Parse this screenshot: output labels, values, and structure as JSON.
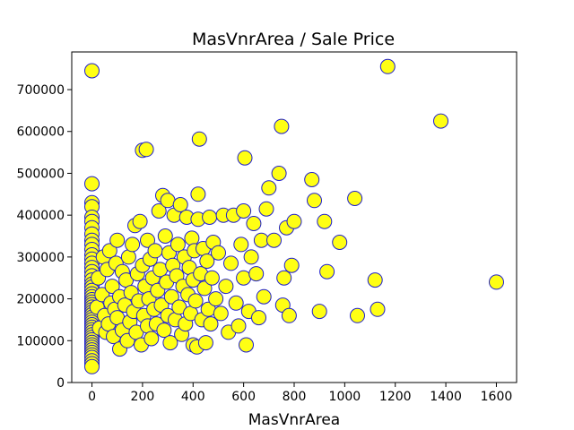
{
  "chart_data": {
    "type": "scatter",
    "title": "MasVnrArea / Sale Price",
    "xlabel": "MasVnrArea",
    "ylabel": "",
    "xlim": [
      -80,
      1680
    ],
    "ylim": [
      0,
      790000
    ],
    "x_ticks": [
      0,
      200,
      400,
      600,
      800,
      1000,
      1200,
      1400,
      1600
    ],
    "y_ticks": [
      0,
      100000,
      200000,
      300000,
      400000,
      500000,
      600000,
      700000
    ],
    "grid": false,
    "marker": {
      "face_color": "#ffff14",
      "edge_color": "#1f1fcc"
    },
    "points": [
      [
        0,
        745000
      ],
      [
        0,
        475000
      ],
      [
        0,
        430000
      ],
      [
        0,
        420000
      ],
      [
        0,
        395000
      ],
      [
        0,
        385000
      ],
      [
        0,
        370000
      ],
      [
        0,
        355000
      ],
      [
        0,
        340000
      ],
      [
        0,
        330000
      ],
      [
        0,
        318000
      ],
      [
        0,
        305000
      ],
      [
        0,
        295000
      ],
      [
        0,
        285000
      ],
      [
        0,
        275000
      ],
      [
        0,
        265000
      ],
      [
        0,
        255000
      ],
      [
        0,
        245000
      ],
      [
        0,
        235000
      ],
      [
        0,
        228000
      ],
      [
        0,
        220000
      ],
      [
        0,
        212000
      ],
      [
        0,
        205000
      ],
      [
        0,
        198000
      ],
      [
        0,
        192000
      ],
      [
        0,
        186000
      ],
      [
        0,
        180000
      ],
      [
        0,
        174000
      ],
      [
        0,
        168000
      ],
      [
        0,
        162000
      ],
      [
        0,
        156000
      ],
      [
        0,
        150000
      ],
      [
        0,
        144000
      ],
      [
        0,
        138000
      ],
      [
        0,
        132000
      ],
      [
        0,
        126000
      ],
      [
        0,
        120000
      ],
      [
        0,
        114000
      ],
      [
        0,
        108000
      ],
      [
        0,
        102000
      ],
      [
        0,
        96000
      ],
      [
        0,
        90000
      ],
      [
        0,
        84000
      ],
      [
        0,
        78000
      ],
      [
        0,
        72000
      ],
      [
        0,
        66000
      ],
      [
        0,
        60000
      ],
      [
        0,
        52000
      ],
      [
        0,
        45000
      ],
      [
        0,
        38000
      ],
      [
        20,
        180000
      ],
      [
        25,
        250000
      ],
      [
        30,
        130000
      ],
      [
        40,
        210000
      ],
      [
        45,
        300000
      ],
      [
        50,
        160000
      ],
      [
        55,
        120000
      ],
      [
        60,
        270000
      ],
      [
        65,
        140000
      ],
      [
        70,
        315000
      ],
      [
        75,
        190000
      ],
      [
        80,
        230000
      ],
      [
        85,
        110000
      ],
      [
        90,
        175000
      ],
      [
        95,
        285000
      ],
      [
        100,
        340000
      ],
      [
        100,
        155000
      ],
      [
        110,
        80000
      ],
      [
        110,
        205000
      ],
      [
        120,
        125000
      ],
      [
        120,
        265000
      ],
      [
        130,
        185000
      ],
      [
        135,
        245000
      ],
      [
        140,
        100000
      ],
      [
        145,
        300000
      ],
      [
        150,
        145000
      ],
      [
        155,
        215000
      ],
      [
        160,
        330000
      ],
      [
        165,
        170000
      ],
      [
        170,
        375000
      ],
      [
        175,
        120000
      ],
      [
        180,
        260000
      ],
      [
        185,
        195000
      ],
      [
        190,
        385000
      ],
      [
        195,
        90000
      ],
      [
        200,
        555000
      ],
      [
        200,
        280000
      ],
      [
        205,
        160000
      ],
      [
        210,
        230000
      ],
      [
        215,
        557000
      ],
      [
        220,
        135000
      ],
      [
        220,
        340000
      ],
      [
        225,
        200000
      ],
      [
        230,
        295000
      ],
      [
        235,
        105000
      ],
      [
        240,
        250000
      ],
      [
        245,
        175000
      ],
      [
        250,
        315000
      ],
      [
        255,
        140000
      ],
      [
        260,
        220000
      ],
      [
        265,
        410000
      ],
      [
        270,
        270000
      ],
      [
        275,
        185000
      ],
      [
        280,
        447000
      ],
      [
        285,
        125000
      ],
      [
        290,
        350000
      ],
      [
        295,
        240000
      ],
      [
        300,
        160000
      ],
      [
        300,
        435000
      ],
      [
        305,
        310000
      ],
      [
        310,
        95000
      ],
      [
        315,
        205000
      ],
      [
        320,
        280000
      ],
      [
        325,
        400000
      ],
      [
        330,
        150000
      ],
      [
        335,
        255000
      ],
      [
        340,
        330000
      ],
      [
        345,
        180000
      ],
      [
        350,
        425000
      ],
      [
        355,
        115000
      ],
      [
        360,
        230000
      ],
      [
        365,
        300000
      ],
      [
        370,
        140000
      ],
      [
        375,
        395000
      ],
      [
        380,
        210000
      ],
      [
        385,
        275000
      ],
      [
        390,
        165000
      ],
      [
        395,
        345000
      ],
      [
        400,
        90000
      ],
      [
        400,
        245000
      ],
      [
        405,
        315000
      ],
      [
        410,
        195000
      ],
      [
        415,
        85000
      ],
      [
        420,
        450000
      ],
      [
        420,
        390000
      ],
      [
        425,
        582000
      ],
      [
        430,
        260000
      ],
      [
        435,
        150000
      ],
      [
        440,
        320000
      ],
      [
        445,
        225000
      ],
      [
        450,
        95000
      ],
      [
        455,
        290000
      ],
      [
        460,
        175000
      ],
      [
        465,
        395000
      ],
      [
        470,
        140000
      ],
      [
        475,
        250000
      ],
      [
        480,
        335000
      ],
      [
        490,
        200000
      ],
      [
        500,
        310000
      ],
      [
        510,
        165000
      ],
      [
        520,
        400000
      ],
      [
        530,
        230000
      ],
      [
        540,
        120000
      ],
      [
        550,
        285000
      ],
      [
        560,
        400000
      ],
      [
        570,
        190000
      ],
      [
        580,
        135000
      ],
      [
        590,
        330000
      ],
      [
        600,
        410000
      ],
      [
        600,
        250000
      ],
      [
        605,
        537000
      ],
      [
        610,
        90000
      ],
      [
        620,
        170000
      ],
      [
        630,
        300000
      ],
      [
        640,
        380000
      ],
      [
        650,
        260000
      ],
      [
        660,
        155000
      ],
      [
        670,
        340000
      ],
      [
        680,
        205000
      ],
      [
        690,
        415000
      ],
      [
        700,
        465000
      ],
      [
        720,
        340000
      ],
      [
        740,
        500000
      ],
      [
        750,
        612000
      ],
      [
        755,
        185000
      ],
      [
        760,
        250000
      ],
      [
        770,
        370000
      ],
      [
        780,
        160000
      ],
      [
        790,
        280000
      ],
      [
        800,
        385000
      ],
      [
        870,
        485000
      ],
      [
        880,
        435000
      ],
      [
        900,
        170000
      ],
      [
        920,
        385000
      ],
      [
        930,
        265000
      ],
      [
        980,
        335000
      ],
      [
        1040,
        440000
      ],
      [
        1050,
        160000
      ],
      [
        1120,
        245000
      ],
      [
        1130,
        175000
      ],
      [
        1170,
        755000
      ],
      [
        1380,
        625000
      ],
      [
        1600,
        240000
      ]
    ]
  }
}
